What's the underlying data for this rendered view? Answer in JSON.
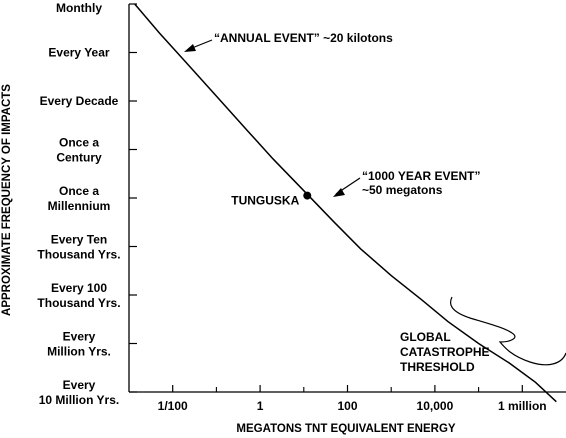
{
  "chart_data": {
    "type": "line",
    "title": "",
    "xlabel": "MEGATONS TNT EQUIVALENT ENERGY",
    "ylabel": "APPROXIMATE FREQUENCY OF IMPACTS",
    "x_scale": "log10",
    "xlim": [
      0.001,
      10000000
    ],
    "x_ticks": [
      {
        "value": 0.01,
        "label": "1/100"
      },
      {
        "value": 1,
        "label": "1"
      },
      {
        "value": 100,
        "label": "100"
      },
      {
        "value": 10000,
        "label": "10,000"
      },
      {
        "value": 1000000,
        "label": "1 million"
      }
    ],
    "y_ticks": [
      {
        "label": [
          "Monthly"
        ]
      },
      {
        "label": [
          "Every Year"
        ]
      },
      {
        "label": [
          "Every Decade"
        ]
      },
      {
        "label": [
          "Once a",
          "Century"
        ]
      },
      {
        "label": [
          "Once a",
          "Millennium"
        ]
      },
      {
        "label": [
          "Every Ten",
          "Thousand Yrs."
        ]
      },
      {
        "label": [
          "Every 100",
          "Thousand Yrs."
        ]
      },
      {
        "label": [
          "Every",
          "Million Yrs."
        ]
      },
      {
        "label": [
          "Every",
          "10 Million Yrs."
        ]
      }
    ],
    "series": [
      {
        "x": [
          0.00135,
          0.005,
          0.02,
          0.1,
          0.5,
          2,
          10,
          50,
          200,
          1000,
          5000,
          20000,
          100000,
          500000,
          2000000,
          6000000
        ],
        "y": [
          0,
          0.6,
          1.2,
          1.9,
          2.6,
          3.2,
          3.85,
          4.5,
          5.05,
          5.6,
          6.1,
          6.55,
          7.0,
          7.4,
          7.8,
          8.2
        ]
      }
    ],
    "points": [
      {
        "label": "TUNGUSKA",
        "x": 12,
        "y": 3.95
      }
    ],
    "annotations": [
      {
        "lines": [
          "“ANNUAL EVENT” ~20 kilotons"
        ]
      },
      {
        "lines": [
          "“1000 YEAR EVENT”",
          "~50 megatons"
        ]
      },
      {
        "lines": [
          "GLOBAL",
          "CATASTROPHE",
          "THRESHOLD"
        ]
      }
    ],
    "grid": false,
    "legend": "none"
  }
}
